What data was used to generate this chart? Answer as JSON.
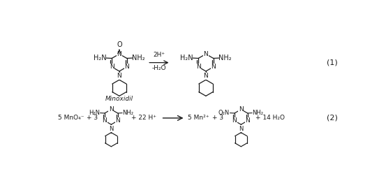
{
  "figsize": [
    5.43,
    2.59
  ],
  "dpi": 100,
  "bg_color": "#ffffff",
  "r1_label": "(1)",
  "r2_label": "(2)",
  "minoxidil_label": "Minoxidil",
  "arrow1_top": "2H⁺",
  "arrow1_bot": "-H₂O",
  "r2_left1": "5 MnO₄⁻",
  "r2_plus1": "+ 3",
  "r2_plus2": "+ 22 H⁺",
  "r2_right1": "5 Mn²⁺",
  "r2_plus3": "+ 3",
  "r2_right2": "+ 14 H₂O",
  "text_color": "#1a1a1a",
  "line_color": "#1a1a1a"
}
